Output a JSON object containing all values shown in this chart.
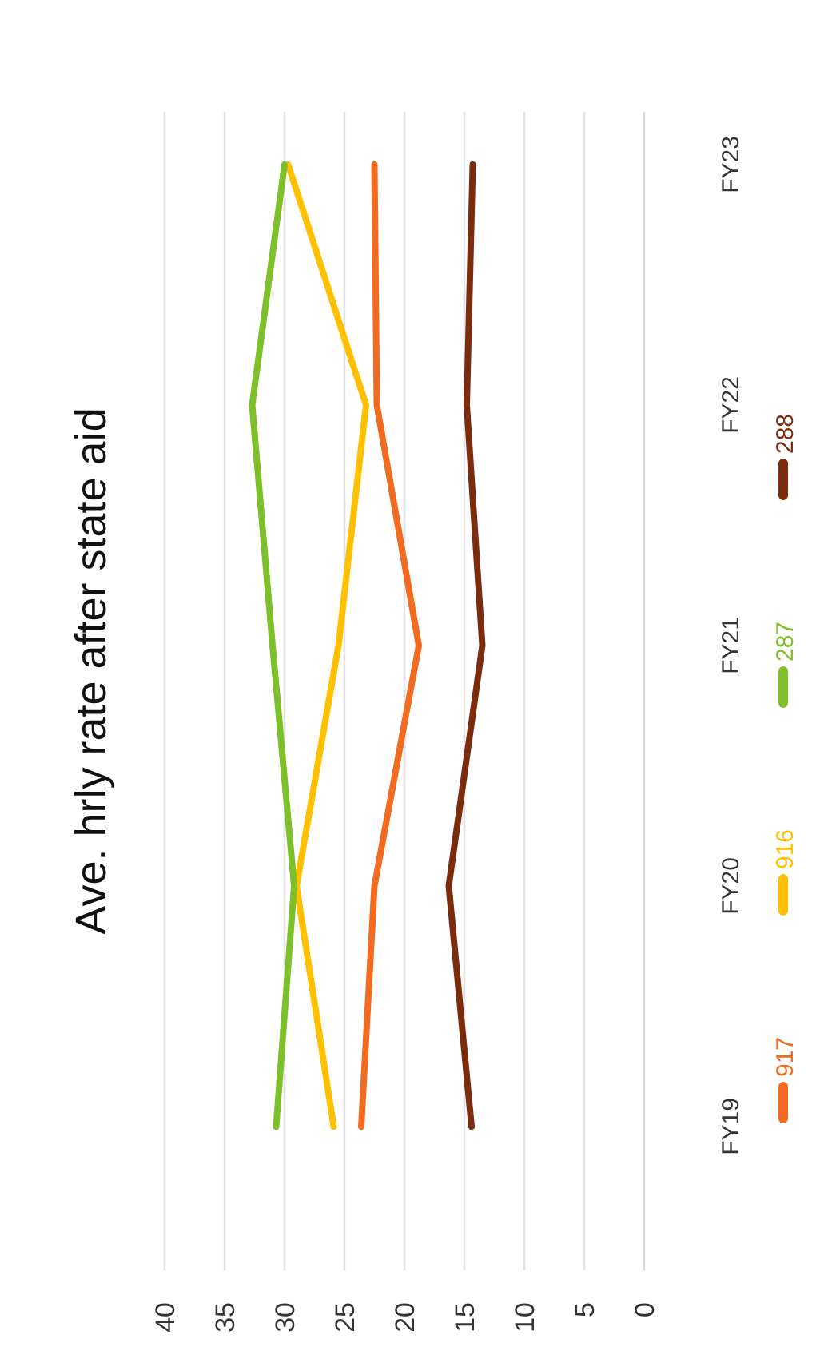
{
  "chart_data": {
    "type": "line",
    "orientation": "horizontal",
    "title": "Ave. hrly rate after state aid",
    "categories": [
      "FY23",
      "FY22",
      "FY21",
      "FY20",
      "FY19"
    ],
    "xlim": [
      40,
      0
    ],
    "xticks": [
      40,
      35,
      30,
      25,
      20,
      15,
      10,
      5,
      0
    ],
    "grid": "x",
    "legend": "right",
    "line_style": "solid",
    "marker": "none",
    "series": [
      {
        "name": "917",
        "color": "#f26b21",
        "values": [
          22.5,
          22.3,
          18.8,
          22.5,
          23.6
        ]
      },
      {
        "name": "916",
        "color": "#ffc000",
        "values": [
          29.7,
          23.2,
          25.5,
          29,
          25.9
        ]
      },
      {
        "name": "287",
        "color": "#7fbf2a",
        "values": [
          30,
          32.7,
          31,
          29.2,
          30.7
        ]
      },
      {
        "name": "288",
        "color": "#7b2c0c",
        "values": [
          14.3,
          14.8,
          13.5,
          16.3,
          14.4
        ]
      }
    ]
  }
}
